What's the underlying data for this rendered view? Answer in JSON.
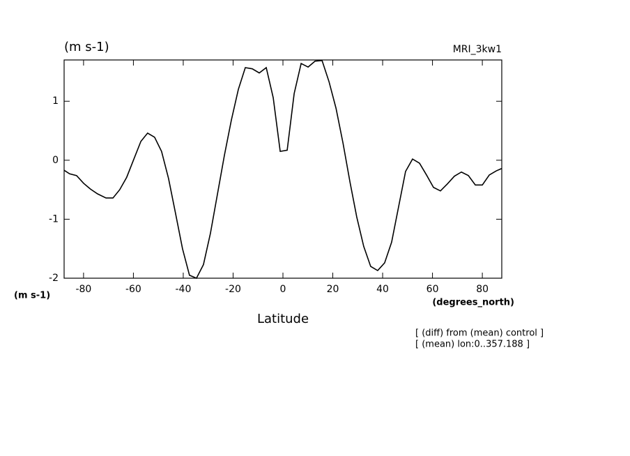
{
  "chart_data": {
    "type": "line",
    "title": "(m s-1)",
    "subtitle": "MRI_3kw1",
    "ylabel": "(m s-1)",
    "xunit": "(degrees_north)",
    "xlabel": "Latitude",
    "annotations": [
      "[ (diff) from (mean) control ]",
      "[ (mean) lon:0..357.188 ]"
    ],
    "x": [
      -87.8,
      -85.6,
      -82.8,
      -80,
      -77.2,
      -74.4,
      -71,
      -68.2,
      -65.5,
      -62.7,
      -59.9,
      -57,
      -54.3,
      -51.5,
      -48.7,
      -45.9,
      -43.1,
      -40.3,
      -37.5,
      -34.7,
      -31.9,
      -29.1,
      -26.3,
      -23.5,
      -20.7,
      -17.9,
      -15.1,
      -12.3,
      -9.5,
      -6.7,
      -3.9,
      -1.1,
      1.7,
      4.5,
      7.3,
      10.1,
      12.9,
      15.7,
      18.5,
      21.3,
      24.1,
      26.9,
      29.6,
      32.4,
      35.2,
      38,
      40.8,
      43.6,
      46.4,
      49.2,
      52,
      54.8,
      57.6,
      60.4,
      63.2,
      66,
      68.8,
      71.6,
      74.4,
      77.2,
      80,
      82.8,
      85.6,
      87.8
    ],
    "series": [
      {
        "color": "#000000",
        "values": [
          -0.17,
          -0.23,
          -0.26,
          -0.39,
          -0.49,
          -0.57,
          -0.64,
          -0.64,
          -0.5,
          -0.29,
          0.01,
          0.32,
          0.46,
          0.39,
          0.15,
          -0.31,
          -0.9,
          -1.5,
          -1.95,
          -2.0,
          -1.77,
          -1.24,
          -0.58,
          0.08,
          0.68,
          1.2,
          1.57,
          1.55,
          1.48,
          1.57,
          1.06,
          0.15,
          0.17,
          1.13,
          1.64,
          1.58,
          1.68,
          1.69,
          1.33,
          0.88,
          0.29,
          -0.37,
          -0.96,
          -1.46,
          -1.8,
          -1.87,
          -1.74,
          -1.39,
          -0.79,
          -0.19,
          0.02,
          -0.05,
          -0.25,
          -0.46,
          -0.52,
          -0.4,
          -0.27,
          -0.2,
          -0.26,
          -0.42,
          -0.42,
          -0.25,
          -0.18,
          -0.14
        ]
      }
    ],
    "xlim": [
      -87.8,
      87.8
    ],
    "xticks": [
      -80,
      -60,
      -40,
      -20,
      0,
      20,
      40,
      60,
      80
    ],
    "ylim": [
      -2,
      1.7
    ],
    "yticks": [
      -2,
      -1,
      0,
      1
    ],
    "grid": false
  }
}
